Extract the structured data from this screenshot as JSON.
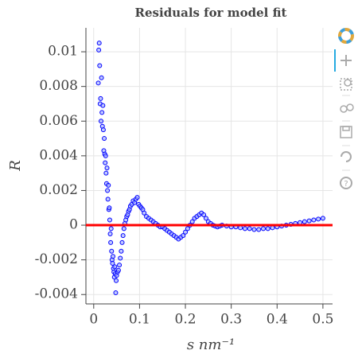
{
  "chart_data": {
    "type": "scatter",
    "title": "Residuals for model fit",
    "xlabel": "s nm⁻¹",
    "ylabel": "R",
    "xlim": [
      -0.017,
      0.521
    ],
    "xticks": [
      0,
      0.1,
      0.2,
      0.3,
      0.4,
      0.5
    ],
    "ylim": [
      -0.00454,
      0.01138
    ],
    "yticks": [
      -0.004,
      -0.002,
      0,
      0.002,
      0.004,
      0.006,
      0.008,
      0.01
    ],
    "grid": true,
    "reference_line": {
      "y": 0,
      "color": "#ff0000"
    },
    "series": [
      {
        "color": "#0000ff",
        "fill": "#9aa8ff",
        "x": [
          0.01,
          0.011,
          0.012,
          0.013,
          0.014,
          0.015,
          0.016,
          0.017,
          0.018,
          0.019,
          0.02,
          0.021,
          0.022,
          0.023,
          0.024,
          0.025,
          0.026,
          0.027,
          0.028,
          0.029,
          0.03,
          0.031,
          0.032,
          0.033,
          0.034,
          0.035,
          0.036,
          0.037,
          0.038,
          0.039,
          0.04,
          0.041,
          0.042,
          0.043,
          0.044,
          0.045,
          0.046,
          0.047,
          0.048,
          0.049,
          0.05,
          0.052,
          0.054,
          0.056,
          0.058,
          0.06,
          0.062,
          0.064,
          0.066,
          0.068,
          0.07,
          0.072,
          0.074,
          0.076,
          0.078,
          0.08,
          0.083,
          0.086,
          0.089,
          0.092,
          0.095,
          0.098,
          0.101,
          0.104,
          0.107,
          0.11,
          0.115,
          0.12,
          0.125,
          0.13,
          0.135,
          0.14,
          0.145,
          0.15,
          0.155,
          0.16,
          0.165,
          0.17,
          0.175,
          0.18,
          0.185,
          0.19,
          0.195,
          0.2,
          0.205,
          0.21,
          0.215,
          0.22,
          0.225,
          0.23,
          0.235,
          0.24,
          0.245,
          0.25,
          0.255,
          0.26,
          0.265,
          0.27,
          0.275,
          0.28,
          0.29,
          0.3,
          0.31,
          0.32,
          0.33,
          0.34,
          0.35,
          0.36,
          0.37,
          0.38,
          0.39,
          0.4,
          0.41,
          0.42,
          0.43,
          0.44,
          0.45,
          0.46,
          0.47,
          0.48,
          0.49,
          0.5
        ],
        "values": [
          0.0082,
          0.0101,
          0.0105,
          0.0092,
          0.007,
          0.0073,
          0.006,
          0.0085,
          0.0065,
          0.0057,
          0.0069,
          0.0055,
          0.0043,
          0.005,
          0.0041,
          0.0036,
          0.004,
          0.003,
          0.0024,
          0.0033,
          0.002,
          0.0015,
          0.0023,
          0.0009,
          0.001,
          0.0003,
          -0.0005,
          -0.001,
          -0.0002,
          -0.0015,
          -0.002,
          -0.0022,
          -0.0018,
          -0.0025,
          -0.0027,
          -0.003,
          -0.0024,
          -0.0028,
          -0.0039,
          -0.0032,
          -0.0029,
          -0.0027,
          -0.0026,
          -0.0023,
          -0.0019,
          -0.0015,
          -0.001,
          -0.0006,
          -0.0002,
          0.0001,
          0.0003,
          0.0005,
          0.0006,
          0.0008,
          0.0009,
          0.0011,
          0.0012,
          0.0014,
          0.0013,
          0.0015,
          0.0016,
          0.0012,
          0.0011,
          0.001,
          0.0009,
          0.0007,
          0.0005,
          0.0004,
          0.0003,
          0.0002,
          0.0001,
          0.0,
          -0.0001,
          -0.0001,
          -0.0002,
          -0.0003,
          -0.0004,
          -0.0005,
          -0.0006,
          -0.0007,
          -0.0008,
          -0.0007,
          -0.0006,
          -0.0004,
          -0.0002,
          0.0,
          0.0002,
          0.0004,
          0.0005,
          0.0006,
          0.0007,
          0.0006,
          0.0004,
          0.0002,
          0.0001,
          0.0,
          -5e-05,
          -0.0001,
          -5e-05,
          0.0,
          -5e-05,
          -0.0001,
          -0.0001,
          -0.00015,
          -0.0002,
          -0.0002,
          -0.00025,
          -0.00025,
          -0.0002,
          -0.0002,
          -0.00015,
          -0.0001,
          -5e-05,
          0.0,
          5e-05,
          0.0001,
          0.00015,
          0.0002,
          0.00025,
          0.0003,
          0.00035,
          0.0004
        ]
      }
    ]
  }
}
